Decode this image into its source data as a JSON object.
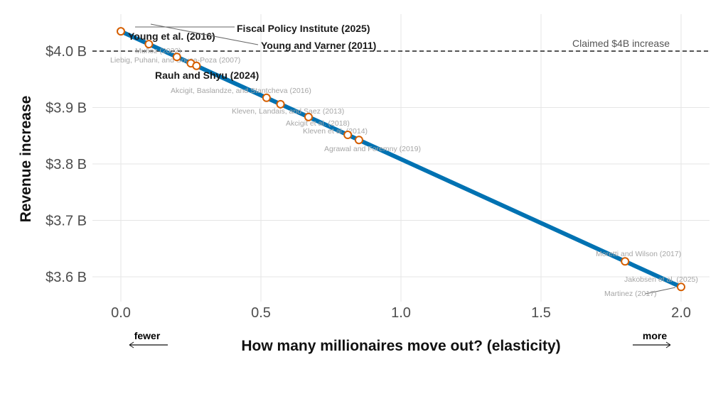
{
  "chart_data": {
    "type": "line",
    "xlabel": "How many millionaires move out? (elasticity)",
    "ylabel": "Revenue increase",
    "xlim": [
      -0.1,
      2.1
    ],
    "ylim": [
      3.555,
      4.06
    ],
    "xticks": [
      0.0,
      0.5,
      1.0,
      1.5,
      2.0
    ],
    "xtick_labels": [
      "0.0",
      "0.5",
      "1.0",
      "1.5",
      "2.0"
    ],
    "yticks": [
      3.6,
      3.7,
      3.8,
      3.9,
      4.0
    ],
    "ytick_labels": [
      "$3.6 B",
      "$3.7 B",
      "$3.8 B",
      "$3.9 B",
      "$4.0 B"
    ],
    "line": {
      "x": [
        0,
        2
      ],
      "y": [
        4.035,
        3.582
      ],
      "color": "#0072b2"
    },
    "reference_line": {
      "y": 4.0,
      "label": "Claimed $4B increase"
    },
    "direction_labels": {
      "left": "fewer",
      "right": "more"
    },
    "grid": true,
    "point_color": "#d55e00",
    "studies": [
      {
        "label": "Fiscal Policy Institute (2025)",
        "elasticity": 0.0,
        "highlight": true
      },
      {
        "label": "Young et al. (2016)",
        "elasticity": 0.0,
        "highlight": true
      },
      {
        "label": "Young and Varner (2011)",
        "elasticity": 0.1,
        "highlight": true
      },
      {
        "label": "Muñoz (2022)",
        "elasticity": 0.2,
        "highlight": false
      },
      {
        "label": "Liebig, Puhani, and Sousa-Poza (2007)",
        "elasticity": 0.25,
        "highlight": false
      },
      {
        "label": "Rauh and Shyu (2024)",
        "elasticity": 0.27,
        "highlight": true
      },
      {
        "label": "Akcigit, Baslandze, and Stantcheva (2016)",
        "elasticity": 0.52,
        "highlight": false
      },
      {
        "label": "Kleven, Landais, and Saez (2013)",
        "elasticity": 0.57,
        "highlight": false
      },
      {
        "label": "Akcigit et al. (2018)",
        "elasticity": 0.67,
        "highlight": false
      },
      {
        "label": "Kleven et al. (2014)",
        "elasticity": 0.81,
        "highlight": false
      },
      {
        "label": "Agrawal and Foremny (2019)",
        "elasticity": 0.85,
        "highlight": false
      },
      {
        "label": "Moretti and Wilson (2017)",
        "elasticity": 1.8,
        "highlight": false
      },
      {
        "label": "Jakobsen et al. (2025)",
        "elasticity": 2.0,
        "highlight": false
      },
      {
        "label": "Martinez (2017)",
        "elasticity": 2.0,
        "highlight": false
      }
    ]
  }
}
